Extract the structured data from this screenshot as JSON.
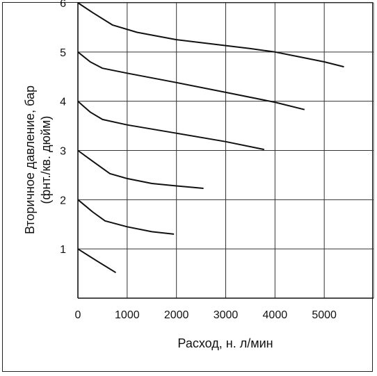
{
  "chart_data": {
    "type": "line",
    "title": "",
    "xlabel": "Расход, н. л/мин",
    "ylabel_line1": "Вторичное давление, бар",
    "ylabel_line2": "(фнт./кв. дюйм)",
    "xlim": [
      0,
      6000
    ],
    "ylim": [
      0,
      6
    ],
    "grid": true,
    "legend": "none",
    "x_ticks": [
      {
        "value": 0,
        "label": "0"
      },
      {
        "value": 1000,
        "label": "1000"
      },
      {
        "value": 2000,
        "label": "2000"
      },
      {
        "value": 3000,
        "label": "3000"
      },
      {
        "value": 4000,
        "label": "4000"
      },
      {
        "value": 5000,
        "label": "5000"
      }
    ],
    "y_ticks": [
      {
        "value": 1,
        "label": "1"
      },
      {
        "value": 2,
        "label": "2"
      },
      {
        "value": 3,
        "label": "3"
      },
      {
        "value": 4,
        "label": "4"
      },
      {
        "value": 5,
        "label": "5"
      },
      {
        "value": 6,
        "label": "6"
      }
    ],
    "series": [
      {
        "values": [
          [
            0,
            6.0
          ],
          [
            300,
            5.8
          ],
          [
            700,
            5.55
          ],
          [
            1200,
            5.4
          ],
          [
            2000,
            5.25
          ],
          [
            3000,
            5.13
          ],
          [
            3500,
            5.07
          ],
          [
            4000,
            5.0
          ],
          [
            4500,
            4.9
          ],
          [
            5000,
            4.8
          ],
          [
            5400,
            4.7
          ]
        ]
      },
      {
        "values": [
          [
            0,
            5.0
          ],
          [
            250,
            4.8
          ],
          [
            500,
            4.67
          ],
          [
            1000,
            4.57
          ],
          [
            2000,
            4.38
          ],
          [
            3000,
            4.18
          ],
          [
            4000,
            3.98
          ],
          [
            4600,
            3.83
          ]
        ]
      },
      {
        "values": [
          [
            0,
            4.0
          ],
          [
            250,
            3.78
          ],
          [
            500,
            3.63
          ],
          [
            1000,
            3.52
          ],
          [
            2000,
            3.35
          ],
          [
            3000,
            3.18
          ],
          [
            3780,
            3.02
          ]
        ]
      },
      {
        "values": [
          [
            0,
            3.0
          ],
          [
            300,
            2.78
          ],
          [
            650,
            2.53
          ],
          [
            1000,
            2.43
          ],
          [
            1500,
            2.33
          ],
          [
            2000,
            2.28
          ],
          [
            2550,
            2.23
          ]
        ]
      },
      {
        "values": [
          [
            0,
            2.0
          ],
          [
            300,
            1.75
          ],
          [
            550,
            1.57
          ],
          [
            1000,
            1.45
          ],
          [
            1500,
            1.35
          ],
          [
            1950,
            1.3
          ]
        ]
      },
      {
        "values": [
          [
            0,
            1.0
          ],
          [
            380,
            0.76
          ],
          [
            770,
            0.52
          ]
        ]
      }
    ]
  }
}
